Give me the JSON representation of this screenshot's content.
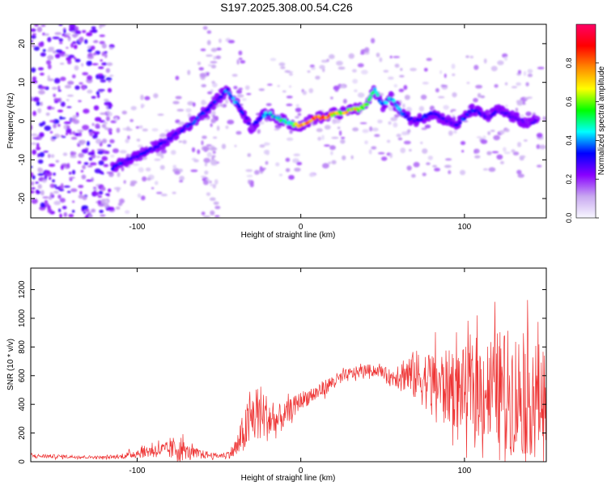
{
  "title": "S197.2025.308.00.54.C26",
  "chart_data": [
    {
      "type": "heatmap",
      "name": "spectrogram",
      "xlabel": "Height of straight line (km)",
      "ylabel": "Frequency (Hz)",
      "xlim": [
        -165,
        150
      ],
      "ylim": [
        -25,
        25
      ],
      "xticks": [
        "-100",
        "0",
        "100"
      ],
      "xtick_values": [
        -100,
        0,
        100
      ],
      "yticks": [
        "-20",
        "-10",
        "0",
        "10",
        "20"
      ],
      "ytick_values": [
        -20,
        -10,
        0,
        10,
        20
      ],
      "colorbar": {
        "label": "Normalized spectral amplitude",
        "range": [
          0.0,
          1.0
        ],
        "ticks": [
          "0.0",
          "0.2",
          "0.4",
          "0.6",
          "0.8"
        ],
        "tick_values": [
          0.0,
          0.2,
          0.4,
          0.6,
          0.8
        ],
        "colors": [
          "#f8f8ff",
          "#c8a8f0",
          "#8800ff",
          "#0000ff",
          "#00ffff",
          "#00ff00",
          "#ffff00",
          "#ff8800",
          "#ff0000",
          "#ff0066"
        ]
      },
      "ridge": {
        "x": [
          -115,
          -105,
          -95,
          -85,
          -75,
          -65,
          -55,
          -50,
          -45,
          -40,
          -35,
          -30,
          -25,
          -20,
          -15,
          -10,
          -5,
          0,
          5,
          10,
          15,
          20,
          25,
          30,
          35,
          40,
          45,
          50,
          55,
          60,
          65,
          70,
          75,
          80,
          85,
          90,
          95,
          100,
          105,
          110,
          115,
          120,
          125,
          130,
          135,
          140,
          145
        ],
        "freq": [
          -12,
          -10,
          -8,
          -6,
          -3,
          0,
          4,
          6,
          8,
          5,
          2,
          -2,
          1,
          2,
          1,
          0,
          -1,
          -1,
          0,
          1,
          1,
          2,
          2,
          3,
          3,
          4,
          8,
          4,
          6,
          3,
          1,
          0,
          1,
          2,
          1,
          0,
          -1,
          1,
          3,
          2,
          1,
          3,
          2,
          1,
          0,
          -1,
          1
        ],
        "amplitude": [
          0.35,
          0.3,
          0.32,
          0.3,
          0.3,
          0.35,
          0.3,
          0.35,
          0.4,
          0.45,
          0.3,
          0.25,
          0.4,
          0.45,
          0.5,
          0.55,
          0.6,
          0.7,
          0.85,
          0.95,
          0.85,
          0.75,
          0.7,
          0.72,
          0.75,
          0.7,
          0.5,
          0.4,
          0.45,
          0.4,
          0.3,
          0.3,
          0.35,
          0.35,
          0.3,
          0.3,
          0.3,
          0.35,
          0.35,
          0.3,
          0.3,
          0.28,
          0.3,
          0.28,
          0.25,
          0.25,
          0.25
        ]
      }
    },
    {
      "type": "line",
      "name": "snr",
      "xlabel": "Height of straight line (km)",
      "ylabel": "SNR (10 * v/v)",
      "xlim": [
        -165,
        150
      ],
      "ylim": [
        0,
        1350
      ],
      "xticks": [
        "-100",
        "0",
        "100"
      ],
      "xtick_values": [
        -100,
        0,
        100
      ],
      "yticks": [
        "0",
        "200",
        "400",
        "600",
        "800",
        "1000",
        "1200"
      ],
      "ytick_values": [
        0,
        200,
        400,
        600,
        800,
        1000,
        1200
      ],
      "color": "#ee3333",
      "envelope": {
        "x": [
          -165,
          -140,
          -120,
          -110,
          -100,
          -90,
          -80,
          -75,
          -70,
          -60,
          -50,
          -45,
          -40,
          -35,
          -30,
          -25,
          -20,
          -15,
          -10,
          -5,
          0,
          10,
          20,
          30,
          40,
          50,
          55,
          60,
          70,
          80,
          90,
          100,
          110,
          120,
          130,
          140,
          150
        ],
        "mean": [
          40,
          35,
          30,
          35,
          60,
          80,
          80,
          100,
          70,
          50,
          40,
          50,
          80,
          200,
          300,
          350,
          300,
          280,
          320,
          380,
          430,
          480,
          560,
          610,
          640,
          630,
          580,
          620,
          600,
          560,
          520,
          500,
          500,
          520,
          480,
          460,
          420
        ],
        "spread": [
          15,
          12,
          10,
          15,
          35,
          50,
          60,
          120,
          50,
          30,
          15,
          25,
          60,
          150,
          200,
          200,
          160,
          120,
          90,
          70,
          60,
          60,
          50,
          45,
          40,
          40,
          60,
          100,
          180,
          220,
          260,
          300,
          350,
          400,
          450,
          420,
          380
        ]
      }
    }
  ]
}
